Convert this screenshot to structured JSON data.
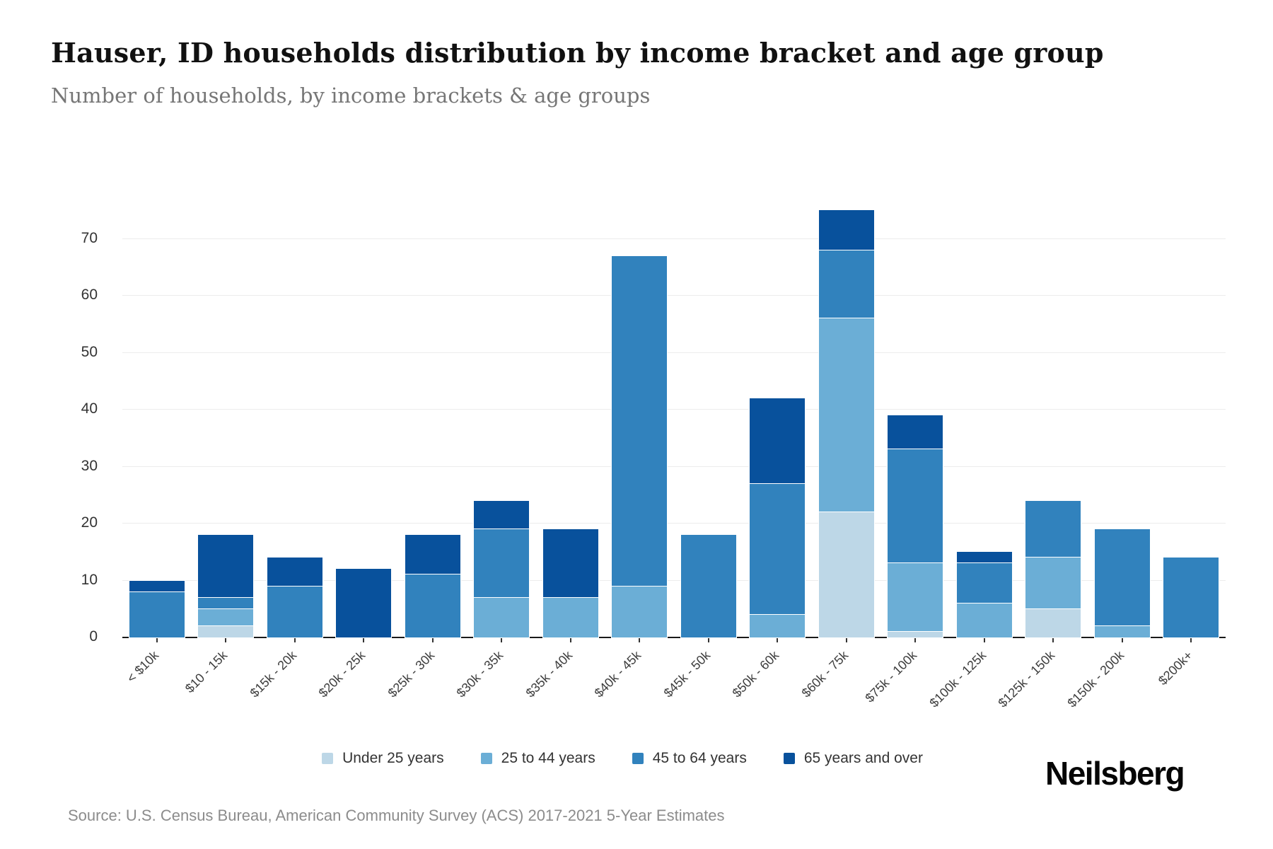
{
  "header": {
    "title": "Hauser, ID households distribution by income bracket and age group",
    "subtitle": "Number of households, by income brackets & age groups"
  },
  "footer": {
    "source": "Source: U.S. Census Bureau, American Community Survey (ACS) 2017-2021 5-Year Estimates",
    "brand": "Neilsberg"
  },
  "chart_data": {
    "type": "bar",
    "stacked": true,
    "grid": true,
    "legend_position": "bottom",
    "xlabel": "",
    "ylabel": "",
    "ylim": [
      0,
      75
    ],
    "yticks": [
      0,
      10,
      20,
      30,
      40,
      50,
      60,
      70
    ],
    "categories": [
      "< $10k",
      "$10 - 15k",
      "$15k - 20k",
      "$20k - 25k",
      "$25k - 30k",
      "$30k - 35k",
      "$35k - 40k",
      "$40k - 45k",
      "$45k - 50k",
      "$50k - 60k",
      "$60k - 75k",
      "$75k - 100k",
      "$100k - 125k",
      "$125k - 150k",
      "$150k - 200k",
      "$200k+"
    ],
    "series": [
      {
        "name": "Under 25 years",
        "color": "#bdd7e7",
        "values": [
          0,
          2,
          0,
          0,
          0,
          0,
          0,
          0,
          0,
          0,
          22,
          1,
          0,
          5,
          0,
          0
        ]
      },
      {
        "name": "25 to 44 years",
        "color": "#6baed6",
        "values": [
          0,
          3,
          0,
          0,
          0,
          7,
          7,
          9,
          0,
          4,
          34,
          12,
          6,
          9,
          2,
          0
        ]
      },
      {
        "name": "45 to 64 years",
        "color": "#3182bd",
        "values": [
          8,
          2,
          9,
          0,
          11,
          12,
          0,
          58,
          18,
          23,
          12,
          20,
          7,
          10,
          17,
          14
        ]
      },
      {
        "name": "65 years and over",
        "color": "#08519c",
        "values": [
          2,
          11,
          5,
          12,
          7,
          5,
          12,
          0,
          0,
          15,
          7,
          6,
          2,
          0,
          0,
          0
        ]
      }
    ],
    "totals": [
      10,
      18,
      14,
      12,
      18,
      24,
      19,
      67,
      18,
      42,
      75,
      39,
      15,
      24,
      19,
      14
    ]
  }
}
